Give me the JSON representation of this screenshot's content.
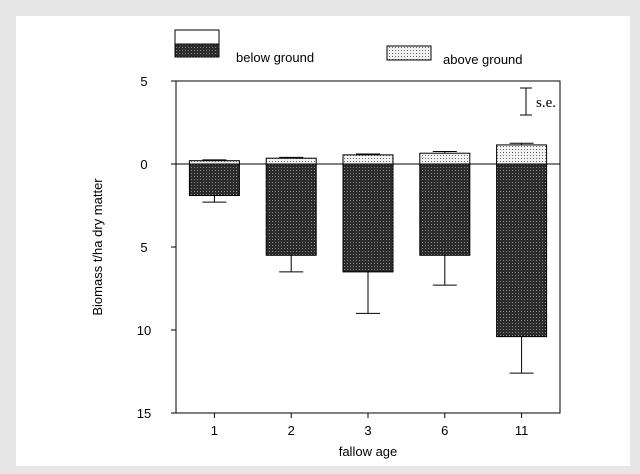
{
  "chart_data": {
    "type": "bar",
    "xlabel": "fallow age",
    "ylabel": "Biomass t/ha dry matter",
    "categories": [
      "1",
      "2",
      "3",
      "6",
      "11"
    ],
    "y_tick_labels": [
      "5",
      "0",
      "5",
      "10",
      "15"
    ],
    "y_ticks": [
      5,
      0,
      -5,
      -10,
      -15
    ],
    "ylim": [
      -15,
      5
    ],
    "series": [
      {
        "name": "below ground",
        "values": [
          -1.9,
          -5.5,
          -6.5,
          -5.5,
          -10.4
        ],
        "se": [
          0.4,
          1.0,
          2.5,
          1.8,
          2.2
        ],
        "fill": "#3a3a3a"
      },
      {
        "name": "above ground",
        "values": [
          0.2,
          0.35,
          0.55,
          0.65,
          1.15
        ],
        "se": [
          0.05,
          0.05,
          0.05,
          0.1,
          0.1
        ],
        "fill": "#c8c8c8"
      }
    ],
    "annotation": "s.e.",
    "legend_position": "top",
    "grid": false
  }
}
